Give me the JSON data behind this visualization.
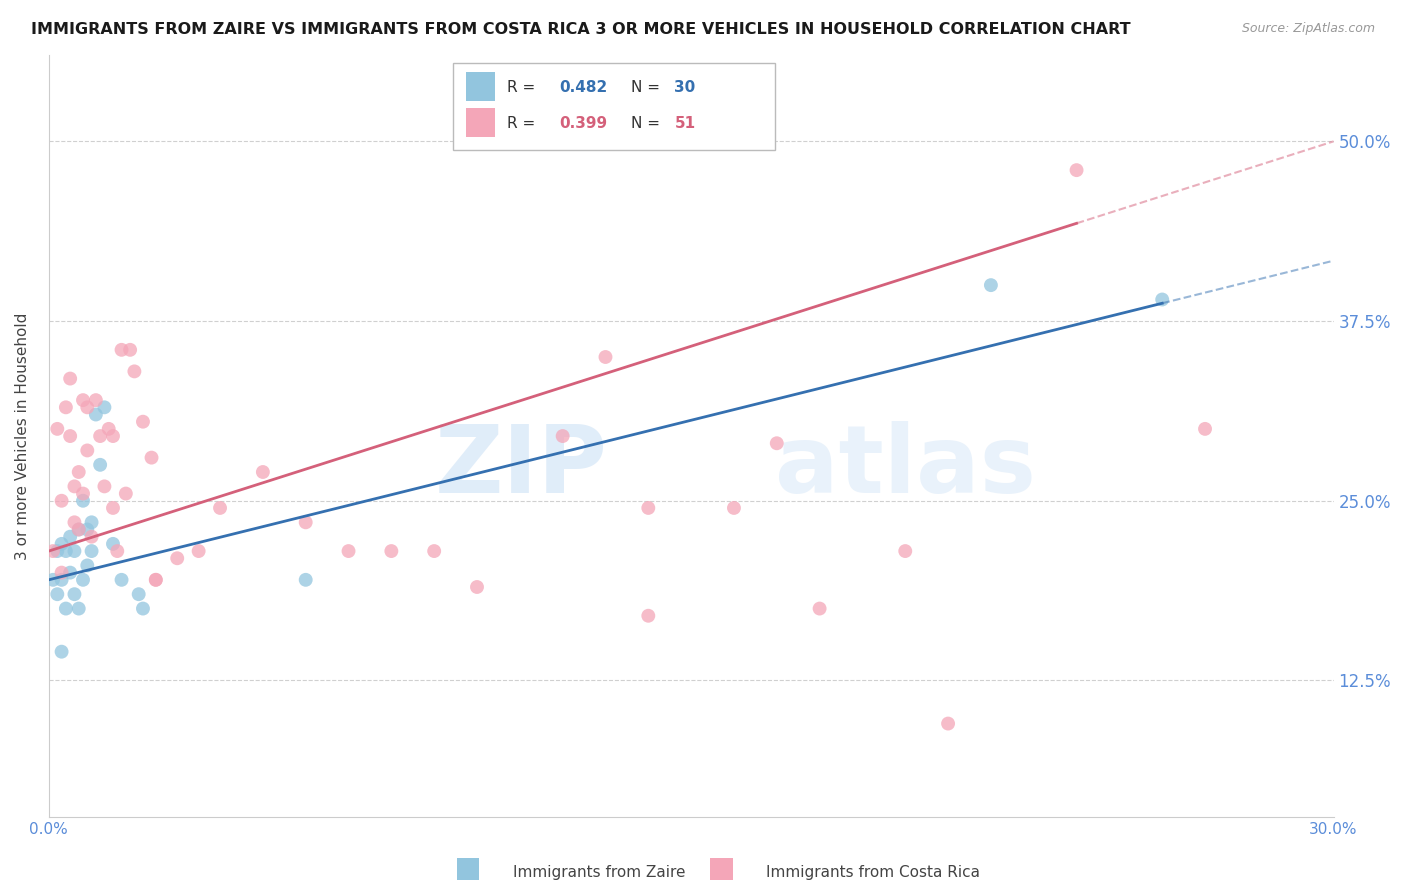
{
  "title": "IMMIGRANTS FROM ZAIRE VS IMMIGRANTS FROM COSTA RICA 3 OR MORE VEHICLES IN HOUSEHOLD CORRELATION CHART",
  "source": "Source: ZipAtlas.com",
  "ylabel": "3 or more Vehicles in Household",
  "legend_blue_label": "Immigrants from Zaire",
  "legend_pink_label": "Immigrants from Costa Rica",
  "x_min": 0.0,
  "x_max": 0.3,
  "y_min": 0.03,
  "y_max": 0.56,
  "yticks": [
    0.125,
    0.25,
    0.375,
    0.5
  ],
  "ytick_labels": [
    "12.5%",
    "25.0%",
    "37.5%",
    "50.0%"
  ],
  "xticks": [
    0.0,
    0.05,
    0.1,
    0.15,
    0.2,
    0.25,
    0.3
  ],
  "xtick_labels": [
    "0.0%",
    "",
    "",
    "",
    "",
    "",
    "30.0%"
  ],
  "blue_color": "#92c5de",
  "pink_color": "#f4a6b8",
  "blue_line_color": "#3570b0",
  "pink_line_color": "#d4607a",
  "axis_color": "#5b8dd9",
  "watermark_zip": "ZIP",
  "watermark_atlas": "atlas",
  "blue_intercept": 0.195,
  "blue_slope": 0.74,
  "pink_intercept": 0.215,
  "pink_slope": 0.95,
  "blue_x": [
    0.001,
    0.002,
    0.002,
    0.003,
    0.003,
    0.004,
    0.004,
    0.005,
    0.005,
    0.006,
    0.006,
    0.007,
    0.007,
    0.008,
    0.008,
    0.009,
    0.009,
    0.01,
    0.01,
    0.011,
    0.012,
    0.013,
    0.015,
    0.017,
    0.021,
    0.022,
    0.06,
    0.22,
    0.26,
    0.003
  ],
  "blue_y": [
    0.195,
    0.185,
    0.215,
    0.195,
    0.22,
    0.175,
    0.215,
    0.2,
    0.225,
    0.185,
    0.215,
    0.175,
    0.23,
    0.25,
    0.195,
    0.23,
    0.205,
    0.235,
    0.215,
    0.31,
    0.275,
    0.315,
    0.22,
    0.195,
    0.185,
    0.175,
    0.195,
    0.4,
    0.39,
    0.145
  ],
  "pink_x": [
    0.001,
    0.002,
    0.003,
    0.003,
    0.004,
    0.005,
    0.005,
    0.006,
    0.006,
    0.007,
    0.007,
    0.008,
    0.008,
    0.009,
    0.009,
    0.01,
    0.011,
    0.012,
    0.013,
    0.014,
    0.015,
    0.016,
    0.017,
    0.018,
    0.019,
    0.02,
    0.022,
    0.024,
    0.025,
    0.03,
    0.035,
    0.04,
    0.06,
    0.08,
    0.1,
    0.12,
    0.14,
    0.16,
    0.18,
    0.2,
    0.015,
    0.025,
    0.05,
    0.07,
    0.09,
    0.13,
    0.17,
    0.21,
    0.24,
    0.14,
    0.27
  ],
  "pink_y": [
    0.215,
    0.3,
    0.2,
    0.25,
    0.315,
    0.335,
    0.295,
    0.26,
    0.235,
    0.23,
    0.27,
    0.255,
    0.32,
    0.285,
    0.315,
    0.225,
    0.32,
    0.295,
    0.26,
    0.3,
    0.245,
    0.215,
    0.355,
    0.255,
    0.355,
    0.34,
    0.305,
    0.28,
    0.195,
    0.21,
    0.215,
    0.245,
    0.235,
    0.215,
    0.19,
    0.295,
    0.245,
    0.245,
    0.175,
    0.215,
    0.295,
    0.195,
    0.27,
    0.215,
    0.215,
    0.35,
    0.29,
    0.095,
    0.48,
    0.17,
    0.3
  ]
}
